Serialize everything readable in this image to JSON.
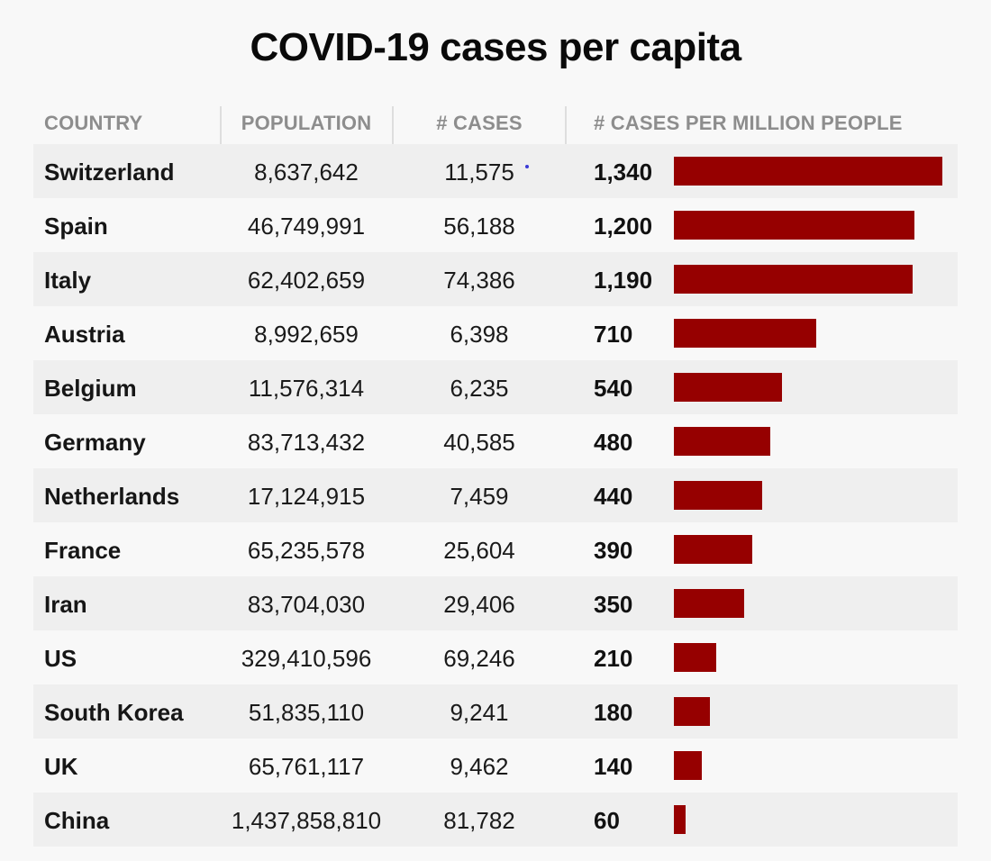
{
  "chart_data": {
    "type": "table",
    "title": "COVID-19 cases per capita",
    "columns": [
      "COUNTRY",
      "POPULATION",
      "# CASES",
      "# CASES PER MILLION PEOPLE"
    ],
    "rows": [
      {
        "country": "Switzerland",
        "population": "8,637,642",
        "cases": "11,575",
        "per_million": "1,340",
        "value": 1340
      },
      {
        "country": "Spain",
        "population": "46,749,991",
        "cases": "56,188",
        "per_million": "1,200",
        "value": 1200
      },
      {
        "country": "Italy",
        "population": "62,402,659",
        "cases": "74,386",
        "per_million": "1,190",
        "value": 1190
      },
      {
        "country": "Austria",
        "population": "8,992,659",
        "cases": "6,398",
        "per_million": "710",
        "value": 710
      },
      {
        "country": "Belgium",
        "population": "11,576,314",
        "cases": "6,235",
        "per_million": "540",
        "value": 540
      },
      {
        "country": "Germany",
        "population": "83,713,432",
        "cases": "40,585",
        "per_million": "480",
        "value": 480
      },
      {
        "country": "Netherlands",
        "population": "17,124,915",
        "cases": "7,459",
        "per_million": "440",
        "value": 440
      },
      {
        "country": "France",
        "population": "65,235,578",
        "cases": "25,604",
        "per_million": "390",
        "value": 390
      },
      {
        "country": "Iran",
        "population": "83,704,030",
        "cases": "29,406",
        "per_million": "350",
        "value": 350
      },
      {
        "country": "US",
        "population": "329,410,596",
        "cases": "69,246",
        "per_million": "210",
        "value": 210
      },
      {
        "country": "South Korea",
        "population": "51,835,110",
        "cases": "9,241",
        "per_million": "180",
        "value": 180
      },
      {
        "country": "UK",
        "population": "65,761,117",
        "cases": "9,462",
        "per_million": "140",
        "value": 140
      },
      {
        "country": "China",
        "population": "1,437,858,810",
        "cases": "81,782",
        "per_million": "60",
        "value": 60
      }
    ],
    "bar_max": 1340,
    "bar_color": "#960000"
  }
}
